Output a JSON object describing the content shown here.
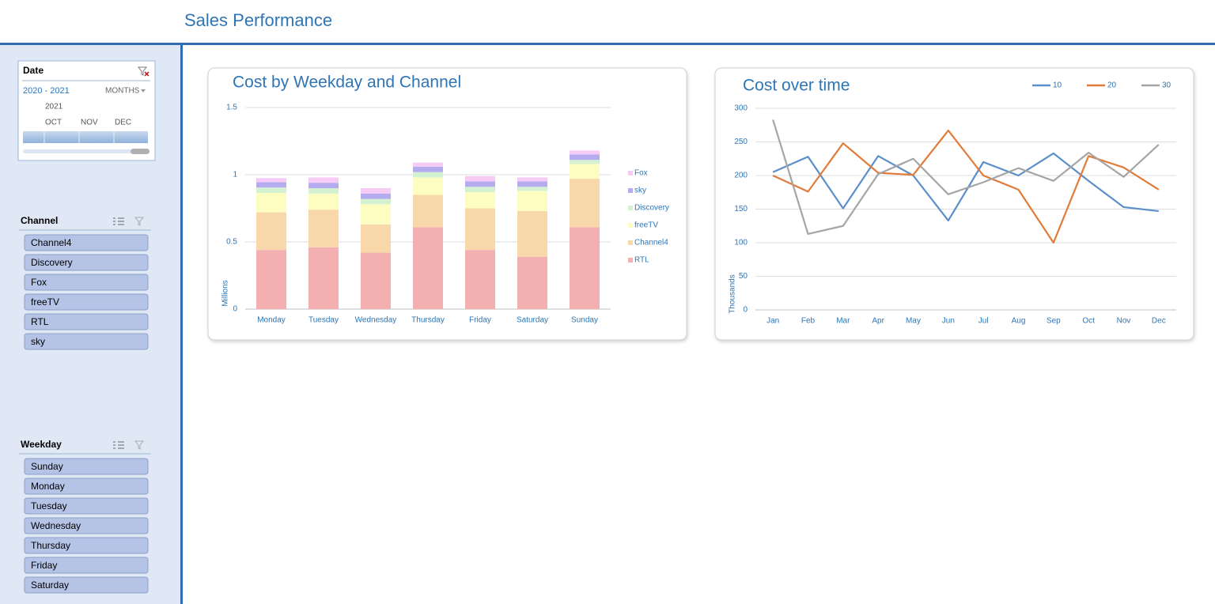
{
  "header": {
    "title": "Sales Performance"
  },
  "date_slicer": {
    "title": "Date",
    "range": "2020 - 2021",
    "level": "MONTHS",
    "year": "2021",
    "months": [
      "OCT",
      "NOV",
      "DEC"
    ]
  },
  "channel_slicer": {
    "title": "Channel",
    "items": [
      "Channel4",
      "Discovery",
      "Fox",
      "freeTV",
      "RTL",
      "sky"
    ]
  },
  "weekday_slicer": {
    "title": "Weekday",
    "items": [
      "Sunday",
      "Monday",
      "Tuesday",
      "Wednesday",
      "Thursday",
      "Friday",
      "Saturday"
    ]
  },
  "chart_data": [
    {
      "type": "bar",
      "stacked": true,
      "title": "Cost by Weekday and Channel",
      "y_label": "Millions",
      "categories": [
        "Monday",
        "Tuesday",
        "Wednesday",
        "Thursday",
        "Friday",
        "Saturday",
        "Sunday"
      ],
      "ylim": [
        0,
        1.5
      ],
      "yticks": [
        0,
        0.5,
        1,
        1.5
      ],
      "grid": true,
      "legend": "right",
      "series": [
        {
          "name": "RTL",
          "color": "#f4b0b0",
          "values": [
            0.44,
            0.46,
            0.42,
            0.61,
            0.44,
            0.39,
            0.61
          ]
        },
        {
          "name": "Channel4",
          "color": "#f8d7ab",
          "values": [
            0.28,
            0.28,
            0.21,
            0.24,
            0.31,
            0.34,
            0.36
          ]
        },
        {
          "name": "freeTV",
          "color": "#fdfdc2",
          "values": [
            0.145,
            0.12,
            0.15,
            0.13,
            0.12,
            0.15,
            0.11
          ]
        },
        {
          "name": "Discovery",
          "color": "#d4f2d2",
          "values": [
            0.04,
            0.04,
            0.04,
            0.04,
            0.04,
            0.03,
            0.03
          ]
        },
        {
          "name": "sky",
          "color": "#b5acf0",
          "values": [
            0.04,
            0.04,
            0.04,
            0.04,
            0.04,
            0.04,
            0.04
          ]
        },
        {
          "name": "Fox",
          "color": "#f6cbf6",
          "values": [
            0.03,
            0.04,
            0.04,
            0.03,
            0.04,
            0.03,
            0.03
          ]
        }
      ]
    },
    {
      "type": "line",
      "title": "Cost over time",
      "y_label": "Thousands",
      "categories": [
        "Jan",
        "Feb",
        "Mar",
        "Apr",
        "May",
        "Jun",
        "Jul",
        "Aug",
        "Sep",
        "Oct",
        "Nov",
        "Dec"
      ],
      "ylim": [
        0,
        300
      ],
      "yticks": [
        0,
        50,
        100,
        150,
        200,
        250,
        300
      ],
      "grid": true,
      "legend": "top-right",
      "series": [
        {
          "name": "10",
          "color": "#5b8fc9",
          "values": [
            205,
            228,
            151,
            229,
            200,
            133,
            220,
            200,
            233,
            192,
            153,
            147
          ]
        },
        {
          "name": "20",
          "color": "#e07b39",
          "values": [
            200,
            176,
            248,
            204,
            201,
            267,
            200,
            179,
            100,
            229,
            212,
            179
          ]
        },
        {
          "name": "30",
          "color": "#a5a5a5",
          "values": [
            283,
            113,
            125,
            202,
            225,
            172,
            190,
            211,
            192,
            234,
            198,
            246
          ]
        }
      ]
    }
  ]
}
